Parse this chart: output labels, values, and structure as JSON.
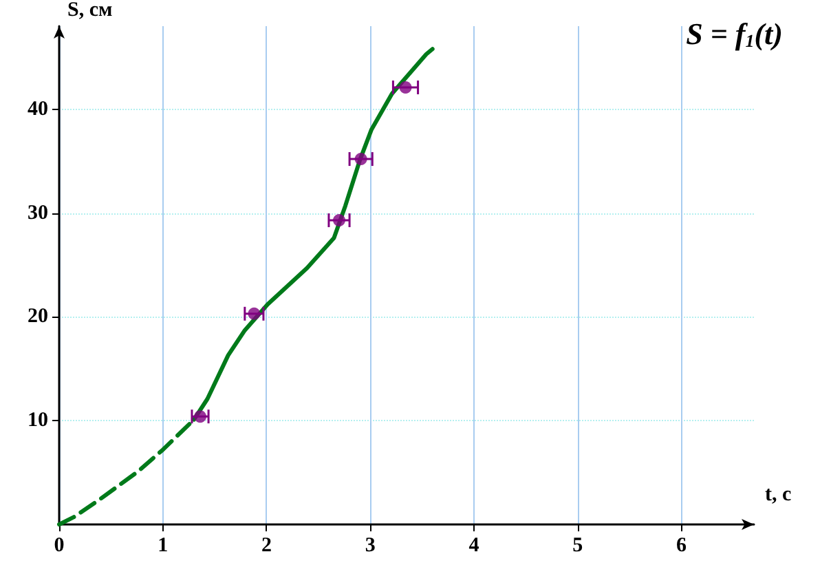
{
  "chart_data": {
    "type": "line",
    "title": "S = f$_{1}$(t)",
    "xlabel": "t, с",
    "ylabel": "S, см",
    "xlim": [
      0,
      6.7
    ],
    "ylim": [
      0,
      48
    ],
    "xticks": [
      0,
      1,
      2,
      3,
      4,
      5,
      6
    ],
    "yticks": [
      10,
      20,
      30,
      40
    ],
    "grid": true,
    "series": [
      {
        "type": "line",
        "color": "#007a1a",
        "line_style": "dashed",
        "marker": "none",
        "x": [
          0,
          0.14,
          0.39,
          0.76,
          1.0,
          1.3
        ],
        "values": [
          0,
          0.7,
          2.4,
          5.1,
          7.2,
          10.1
        ]
      },
      {
        "type": "line",
        "color": "#007a1a",
        "line_style": "solid",
        "marker": "none",
        "x": [
          1.3,
          1.43,
          1.63,
          1.79,
          2.01,
          2.39,
          2.65,
          2.76,
          2.9,
          3.01,
          3.21,
          3.54,
          3.6
        ],
        "values": [
          10.1,
          12.1,
          16.3,
          18.7,
          21.2,
          24.7,
          27.6,
          30.7,
          35.1,
          38.0,
          41.5,
          45.3,
          45.8
        ]
      },
      {
        "type": "scatter",
        "color": "#800080",
        "marker": "circle",
        "x": [
          1.36,
          1.88,
          2.7,
          2.91,
          3.34
        ],
        "values": [
          10.4,
          20.3,
          29.3,
          35.2,
          42.1
        ],
        "xerrors": [
          0.08,
          0.09,
          0.1,
          0.11,
          0.12
        ]
      }
    ]
  }
}
